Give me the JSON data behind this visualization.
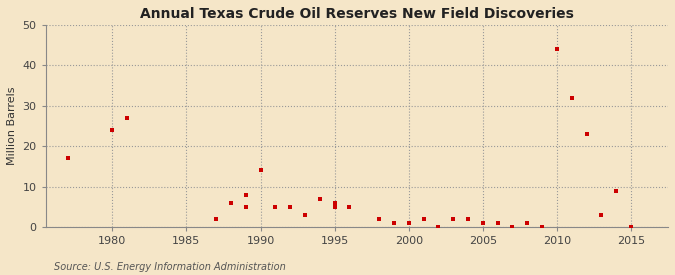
{
  "title": "Annual Texas Crude Oil Reserves New Field Discoveries",
  "ylabel": "Million Barrels",
  "source": "Source: U.S. Energy Information Administration",
  "background_color": "#f5e6c8",
  "marker_color": "#cc0000",
  "xlim": [
    1975.5,
    2017.5
  ],
  "ylim": [
    0,
    50
  ],
  "xticks": [
    1980,
    1985,
    1990,
    1995,
    2000,
    2005,
    2010,
    2015
  ],
  "yticks": [
    0,
    10,
    20,
    30,
    40,
    50
  ],
  "data": [
    [
      1977,
      17
    ],
    [
      1980,
      24
    ],
    [
      1981,
      27
    ],
    [
      1987,
      2
    ],
    [
      1988,
      6
    ],
    [
      1989,
      5
    ],
    [
      1989,
      8
    ],
    [
      1990,
      14
    ],
    [
      1991,
      5
    ],
    [
      1992,
      5
    ],
    [
      1993,
      3
    ],
    [
      1994,
      7
    ],
    [
      1994,
      7
    ],
    [
      1995,
      5
    ],
    [
      1995,
      6
    ],
    [
      1996,
      5
    ],
    [
      1998,
      2
    ],
    [
      1999,
      1
    ],
    [
      2000,
      1
    ],
    [
      2001,
      2
    ],
    [
      2002,
      0
    ],
    [
      2003,
      2
    ],
    [
      2004,
      2
    ],
    [
      2005,
      1
    ],
    [
      2006,
      1
    ],
    [
      2007,
      0
    ],
    [
      2008,
      1
    ],
    [
      2009,
      0
    ],
    [
      2010,
      44
    ],
    [
      2011,
      32
    ],
    [
      2012,
      23
    ],
    [
      2013,
      3
    ],
    [
      2014,
      9
    ],
    [
      2015,
      0
    ]
  ]
}
